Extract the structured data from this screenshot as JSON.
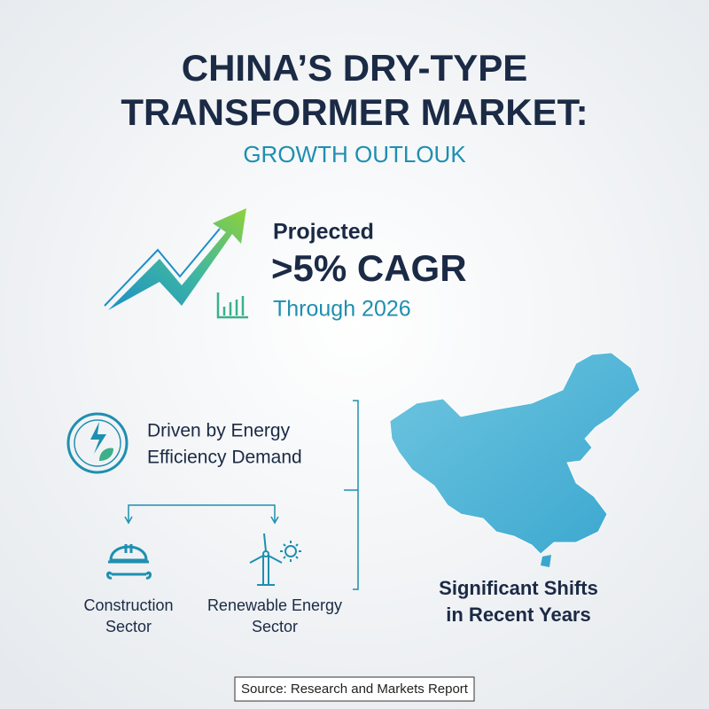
{
  "header": {
    "title_lines": [
      "CHINA’S DRY-TYPE",
      "TRANSFORMER MARKET:"
    ],
    "subtitle": "GROWTH OUTLOUK"
  },
  "projection": {
    "label": "Projected",
    "headline": ">5% CAGR",
    "period": "Through 2026"
  },
  "driver": {
    "lines": [
      "Driven by Energy",
      "Efficiency Demand"
    ]
  },
  "sectors": [
    {
      "lines": [
        "Construction",
        "Sector"
      ]
    },
    {
      "lines": [
        "Renewable Energy",
        "Sector"
      ]
    }
  ],
  "map_caption": {
    "lines": [
      "Significant Shifts",
      "in Recent Years"
    ]
  },
  "source": "Source: Research and Markets Report"
}
